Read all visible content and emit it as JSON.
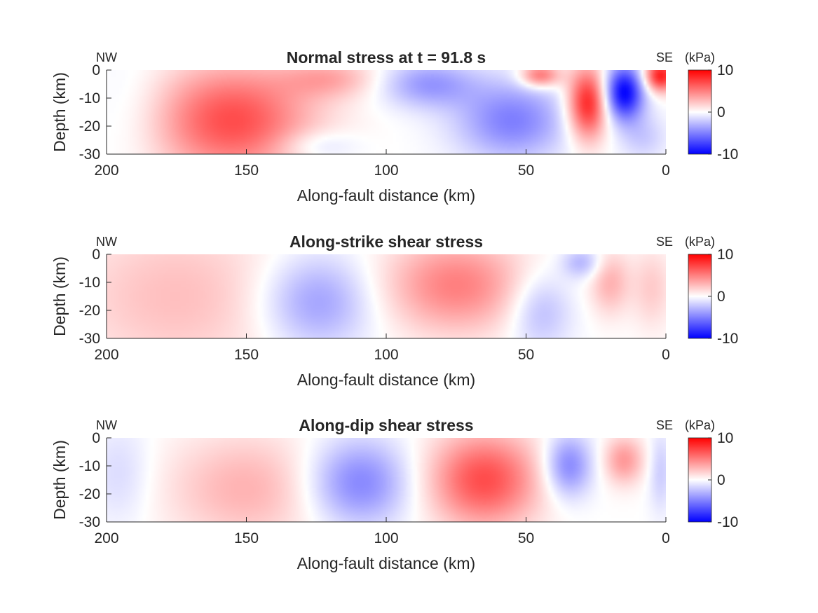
{
  "chart_data": [
    {
      "type": "heatmap",
      "title": "Normal stress at t = 91.8 s",
      "xlabel": "Along-fault distance (km)",
      "ylabel": "Depth (km)",
      "xlim": [
        200,
        0
      ],
      "ylim": [
        -30,
        0
      ],
      "x_reversed": true,
      "xticks": [
        "200",
        "150",
        "100",
        "50",
        "0"
      ],
      "yticks": [
        "0",
        "-10",
        "-20",
        "-30"
      ],
      "left_label": "NW",
      "right_label": "SE",
      "colorbar": {
        "unit": "(kPa)",
        "ticks": [
          "10",
          "0",
          "-10"
        ],
        "range": [
          -10,
          10
        ]
      },
      "grid": false,
      "blobs": [
        {
          "x": 155,
          "depth": -18,
          "value": 7,
          "sx": 20,
          "sd": 14
        },
        {
          "x": 190,
          "depth": -15,
          "value": -1,
          "sx": 10,
          "sd": 15
        },
        {
          "x": 120,
          "depth": -3,
          "value": 3,
          "sx": 12,
          "sd": 5
        },
        {
          "x": 85,
          "depth": -5,
          "value": -4,
          "sx": 12,
          "sd": 6
        },
        {
          "x": 125,
          "depth": -27,
          "value": -2,
          "sx": 10,
          "sd": 4
        },
        {
          "x": 55,
          "depth": -18,
          "value": -5,
          "sx": 14,
          "sd": 10
        },
        {
          "x": 45,
          "depth": -2,
          "value": 6,
          "sx": 5,
          "sd": 3
        },
        {
          "x": 28,
          "depth": -12,
          "value": 9,
          "sx": 5,
          "sd": 9
        },
        {
          "x": 15,
          "depth": -8,
          "value": -10,
          "sx": 5,
          "sd": 7
        },
        {
          "x": 2,
          "depth": -2,
          "value": 9,
          "sx": 4,
          "sd": 4
        },
        {
          "x": 8,
          "depth": -24,
          "value": -2,
          "sx": 6,
          "sd": 6
        }
      ]
    },
    {
      "type": "heatmap",
      "title": "Along-strike shear stress",
      "xlabel": "Along-fault distance (km)",
      "ylabel": "Depth (km)",
      "xlim": [
        200,
        0
      ],
      "ylim": [
        -30,
        0
      ],
      "x_reversed": true,
      "xticks": [
        "200",
        "150",
        "100",
        "50",
        "0"
      ],
      "yticks": [
        "0",
        "-10",
        "-20",
        "-30"
      ],
      "left_label": "NW",
      "right_label": "SE",
      "colorbar": {
        "unit": "(kPa)",
        "ticks": [
          "10",
          "0",
          "-10"
        ],
        "range": [
          -10,
          10
        ]
      },
      "grid": false,
      "blobs": [
        {
          "x": 175,
          "depth": -15,
          "value": 2.5,
          "sx": 28,
          "sd": 20
        },
        {
          "x": 125,
          "depth": -17,
          "value": -4,
          "sx": 14,
          "sd": 12
        },
        {
          "x": 75,
          "depth": -11,
          "value": 5,
          "sx": 18,
          "sd": 12
        },
        {
          "x": 45,
          "depth": -20,
          "value": -3,
          "sx": 8,
          "sd": 10
        },
        {
          "x": 30,
          "depth": -3,
          "value": -3,
          "sx": 5,
          "sd": 4
        },
        {
          "x": 20,
          "depth": -10,
          "value": 3,
          "sx": 5,
          "sd": 8
        },
        {
          "x": 5,
          "depth": -12,
          "value": 2,
          "sx": 5,
          "sd": 10
        }
      ]
    },
    {
      "type": "heatmap",
      "title": "Along-dip shear stress",
      "xlabel": "Along-fault distance (km)",
      "ylabel": "Depth (km)",
      "xlim": [
        200,
        0
      ],
      "ylim": [
        -30,
        0
      ],
      "x_reversed": true,
      "xticks": [
        "200",
        "150",
        "100",
        "50",
        "0"
      ],
      "yticks": [
        "0",
        "-10",
        "-20",
        "-30"
      ],
      "left_label": "NW",
      "right_label": "SE",
      "colorbar": {
        "unit": "(kPa)",
        "ticks": [
          "10",
          "0",
          "-10"
        ],
        "range": [
          -10,
          10
        ]
      },
      "grid": false,
      "blobs": [
        {
          "x": 195,
          "depth": -13,
          "value": -1.5,
          "sx": 8,
          "sd": 13
        },
        {
          "x": 150,
          "depth": -18,
          "value": 3,
          "sx": 20,
          "sd": 14
        },
        {
          "x": 110,
          "depth": -16,
          "value": -5,
          "sx": 13,
          "sd": 11
        },
        {
          "x": 65,
          "depth": -15,
          "value": 7,
          "sx": 14,
          "sd": 12
        },
        {
          "x": 35,
          "depth": -10,
          "value": -5,
          "sx": 6,
          "sd": 8
        },
        {
          "x": 15,
          "depth": -8,
          "value": 4,
          "sx": 5,
          "sd": 6
        },
        {
          "x": 2,
          "depth": -12,
          "value": -2,
          "sx": 3,
          "sd": 10
        }
      ]
    }
  ]
}
